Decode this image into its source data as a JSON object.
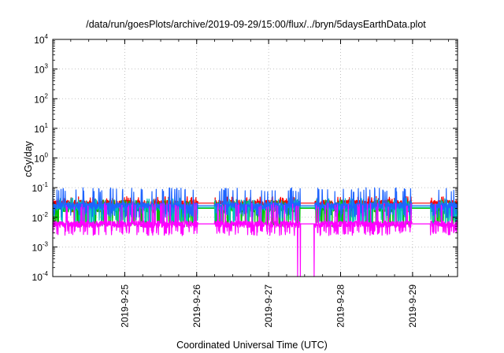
{
  "chart_data": {
    "type": "line",
    "title": "/data/run/goesPlots/archive/2019-09-29/15:00/flux/../bryn/5daysEarthData.plot",
    "xlabel": "Coordinated Universal Time (UTC)",
    "ylabel": "cGy/day",
    "y_scale": "log",
    "ylim": [
      0.0001,
      10000
    ],
    "xlim": [
      "2019-09-24 00:00",
      "2019-09-29 15:00"
    ],
    "grid": true,
    "legend": "none",
    "y_ticks": [
      {
        "base": "10",
        "exp": "-4"
      },
      {
        "base": "10",
        "exp": "-3"
      },
      {
        "base": "10",
        "exp": "-2"
      },
      {
        "base": "10",
        "exp": "-1"
      },
      {
        "base": "10",
        "exp": "0"
      },
      {
        "base": "10",
        "exp": "1"
      },
      {
        "base": "10",
        "exp": "2"
      },
      {
        "base": "10",
        "exp": "3"
      },
      {
        "base": "10",
        "exp": "4"
      }
    ],
    "x_ticks": [
      "2019-9-25",
      "2019-9-26",
      "2019-9-27",
      "2019-9-28",
      "2019-9-29"
    ],
    "data_gaps": [
      {
        "start": "2019-09-26 00:20",
        "end": "2019-09-26 06:00"
      },
      {
        "start": "2019-09-27 10:30",
        "end": "2019-09-27 15:30"
      },
      {
        "start": "2019-09-28 23:40",
        "end": "2019-09-29 06:00"
      }
    ],
    "spikes_to_minimum": [
      "2019-09-27 09:40",
      "2019-09-27 10:35",
      "2019-09-27 15:10"
    ],
    "series": [
      {
        "color": "#ff0000",
        "typical": 0.03,
        "low": 0.018,
        "high": 0.05
      },
      {
        "color": "#00c000",
        "typical": 0.02,
        "low": 0.006,
        "high": 0.04
      },
      {
        "color": "#00c0c0",
        "typical": 0.022,
        "low": 0.007,
        "high": 0.045
      },
      {
        "color": "#1e64ff",
        "typical": 0.025,
        "low": 0.012,
        "high": 0.1
      },
      {
        "color": "#ff00ff",
        "typical": 0.006,
        "low": 0.003,
        "high": 0.03
      }
    ]
  }
}
